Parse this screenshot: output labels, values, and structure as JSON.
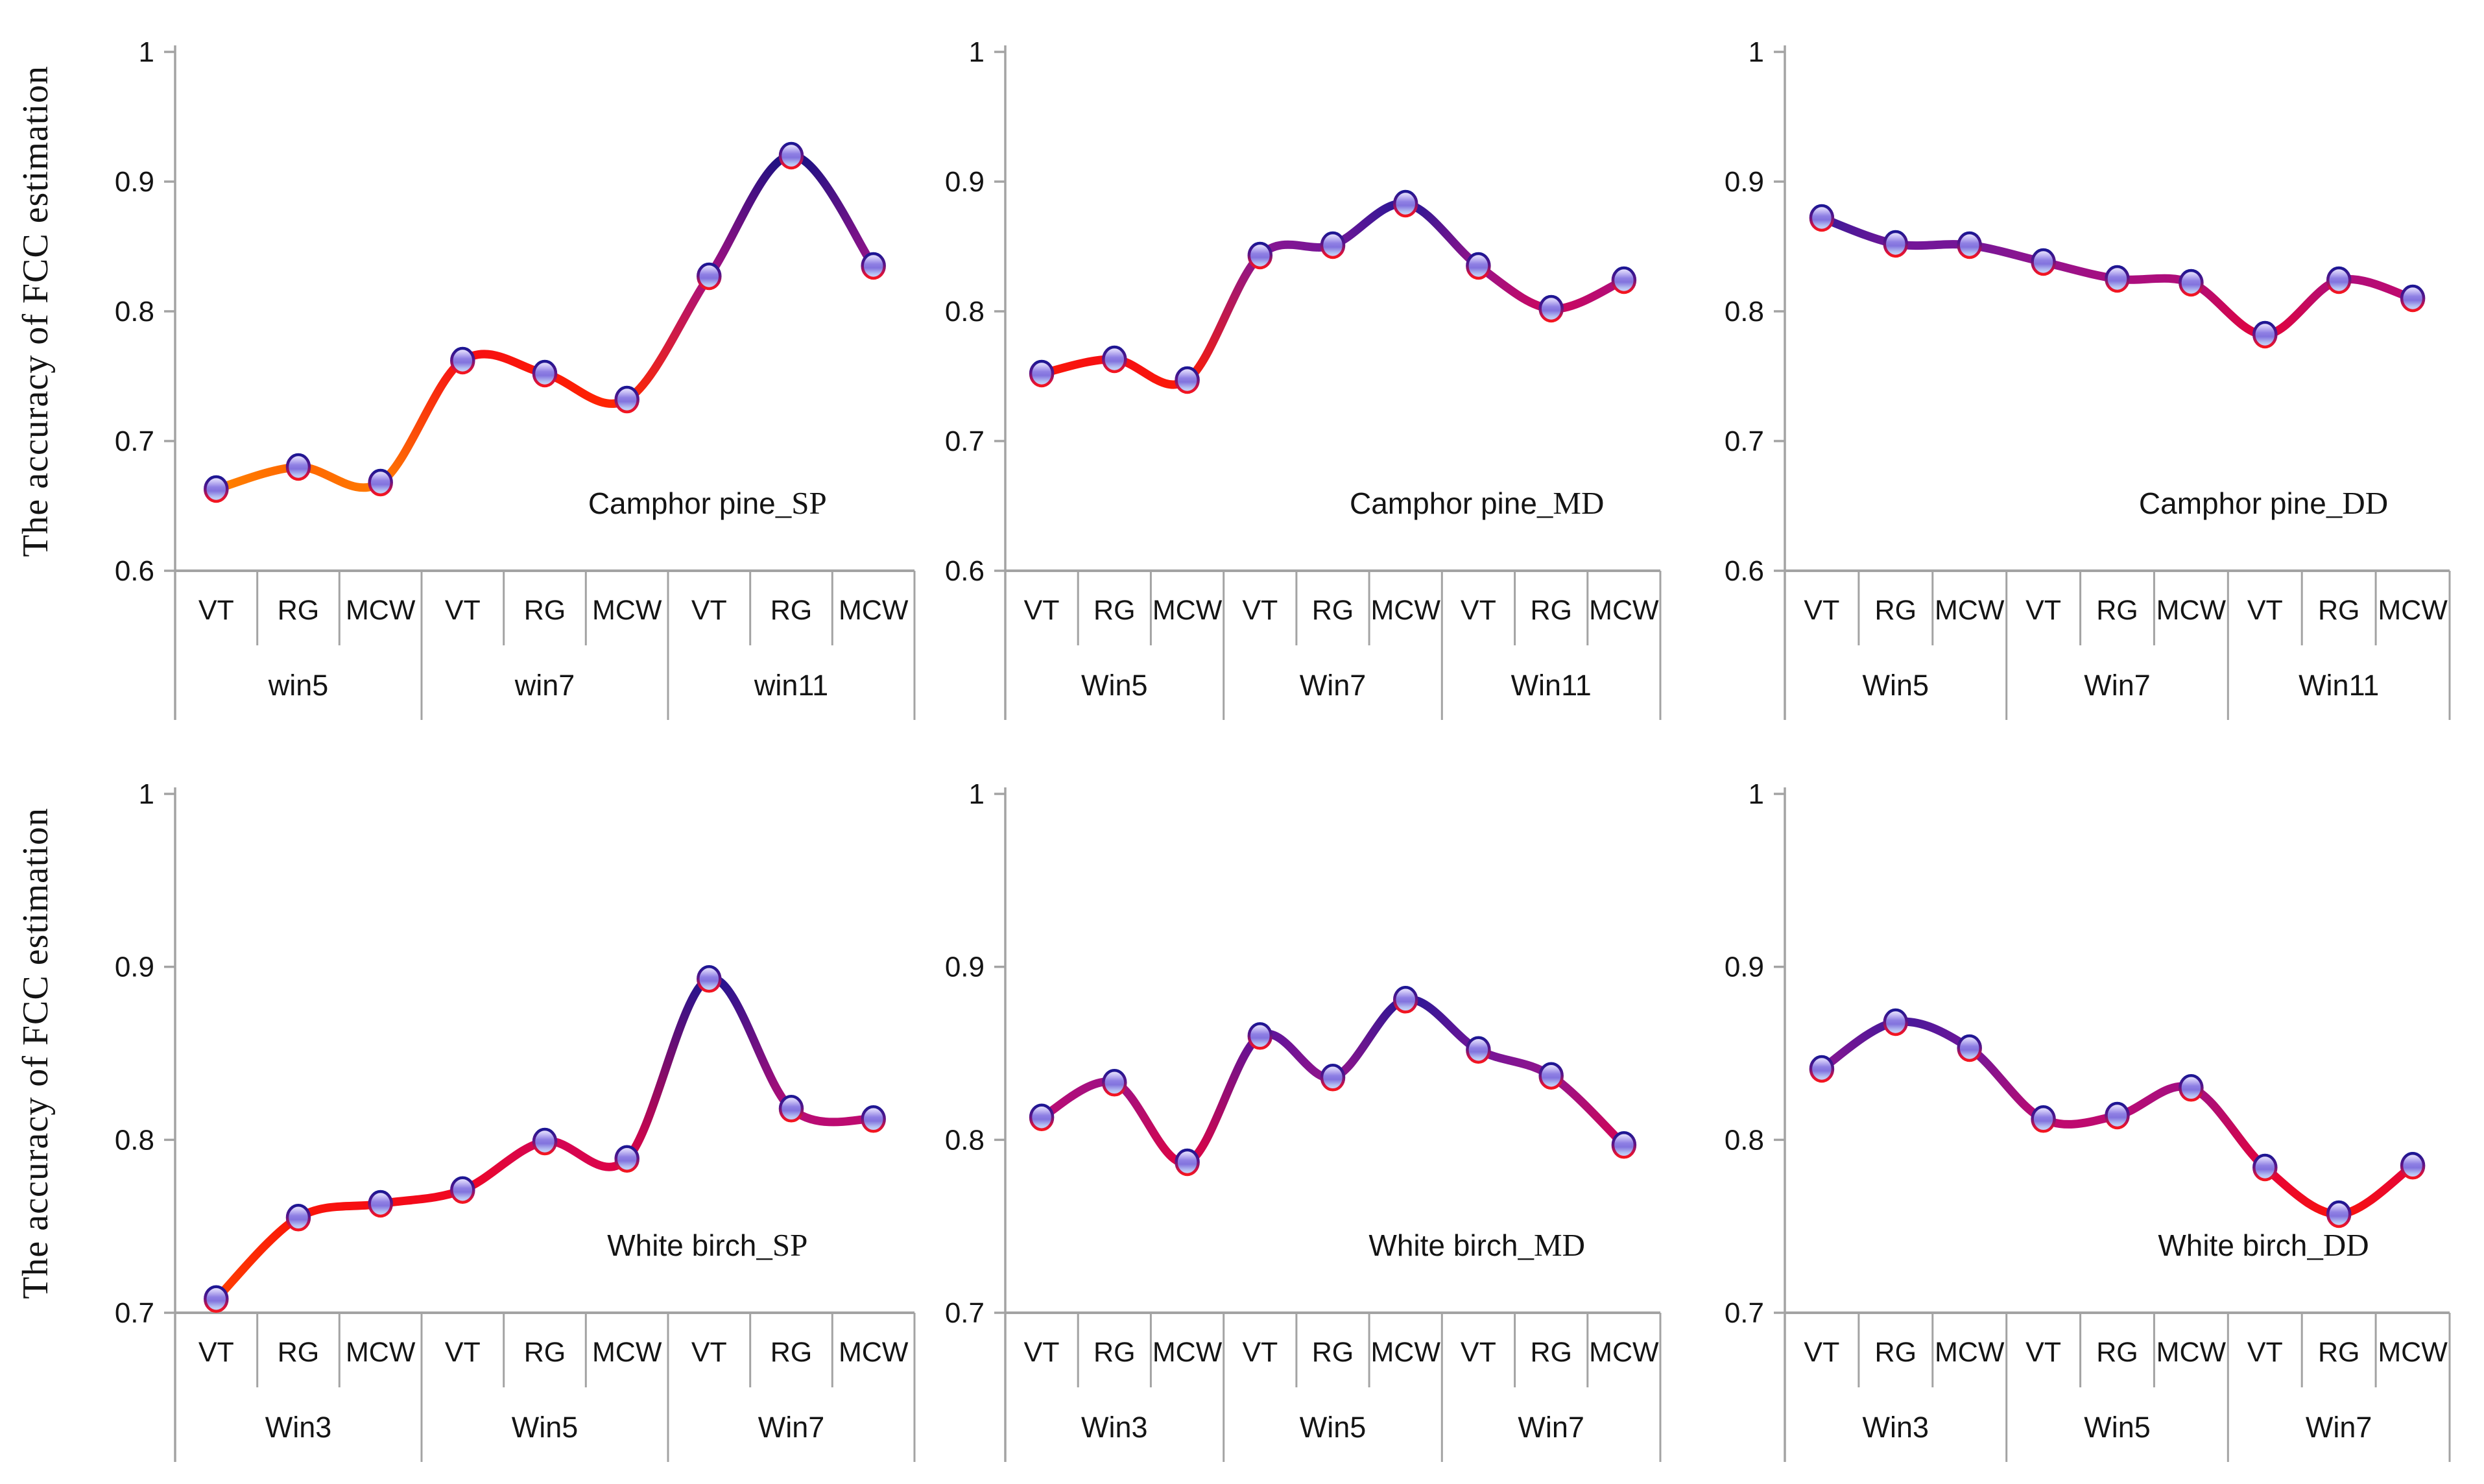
{
  "figure": {
    "ylabel": "The accuracy of FCC estimation"
  },
  "style": {
    "axis_color": "#a3a3a3",
    "text_color": "#141414",
    "line_width": 13,
    "line_color_stops": [
      [
        0.655,
        "#ff9000"
      ],
      [
        0.695,
        "#ff4d00"
      ],
      [
        0.73,
        "#ff2a00"
      ],
      [
        0.755,
        "#fa1508"
      ],
      [
        0.775,
        "#ee0229"
      ],
      [
        0.795,
        "#d8034f"
      ],
      [
        0.81,
        "#c3096b"
      ],
      [
        0.825,
        "#aa0e7e"
      ],
      [
        0.84,
        "#8f158f"
      ],
      [
        0.852,
        "#731698"
      ],
      [
        0.862,
        "#54149d"
      ],
      [
        0.872,
        "#3a1a98"
      ],
      [
        0.882,
        "#271795"
      ],
      [
        0.895,
        "#1c1590"
      ],
      [
        0.925,
        "#141080"
      ]
    ],
    "marker_fill_stops": [
      "#f1eefe",
      "#ccc4f6",
      "#8f80e4",
      "#8273de",
      "#b4c0f2",
      "#d0dbf8"
    ],
    "marker_stroke_stops": [
      "#1c1694",
      "#5a1589",
      "#d51140",
      "#f4161f"
    ]
  },
  "chart_data": [
    {
      "type": "line",
      "panel": "top-left",
      "title": "Camphor pine_SP",
      "title_name": "Camphor pine",
      "title_suffix": "_SP",
      "ylabel": "The accuracy of FCC estimation",
      "ylim": [
        0.6,
        1
      ],
      "yticks": [
        0.6,
        0.7,
        0.8,
        0.9,
        1
      ],
      "ytick_labels": [
        "0.6",
        "0.7",
        "0.8",
        "0.9",
        "1"
      ],
      "grid": false,
      "legend": false,
      "groups": [
        {
          "label": "win5",
          "categories": [
            "VT",
            "RG",
            "MCW"
          ],
          "values": [
            0.663,
            0.68,
            0.668
          ]
        },
        {
          "label": "win7",
          "categories": [
            "VT",
            "RG",
            "MCW"
          ],
          "values": [
            0.762,
            0.752,
            0.732
          ]
        },
        {
          "label": "win11",
          "categories": [
            "VT",
            "RG",
            "MCW"
          ],
          "values": [
            0.827,
            0.92,
            0.835
          ]
        }
      ]
    },
    {
      "type": "line",
      "panel": "top-middle",
      "title": "Camphor pine_MD",
      "title_name": "Camphor pine",
      "title_suffix": "_MD",
      "ylim": [
        0.6,
        1
      ],
      "yticks": [
        0.6,
        0.7,
        0.8,
        0.9,
        1
      ],
      "ytick_labels": [
        "0.6",
        "0.7",
        "0.8",
        "0.9",
        "1"
      ],
      "grid": false,
      "legend": false,
      "groups": [
        {
          "label": "Win5",
          "categories": [
            "VT",
            "RG",
            "MCW"
          ],
          "values": [
            0.752,
            0.763,
            0.747
          ]
        },
        {
          "label": "Win7",
          "categories": [
            "VT",
            "RG",
            "MCW"
          ],
          "values": [
            0.843,
            0.851,
            0.883
          ]
        },
        {
          "label": "Win11",
          "categories": [
            "VT",
            "RG",
            "MCW"
          ],
          "values": [
            0.835,
            0.802,
            0.824
          ]
        }
      ]
    },
    {
      "type": "line",
      "panel": "top-right",
      "title": "Camphor pine_DD",
      "title_name": "Camphor pine",
      "title_suffix": "_DD",
      "ylim": [
        0.6,
        1
      ],
      "yticks": [
        0.6,
        0.7,
        0.8,
        0.9,
        1
      ],
      "ytick_labels": [
        "0.6",
        "0.7",
        "0.8",
        "0.9",
        "1"
      ],
      "grid": false,
      "legend": false,
      "groups": [
        {
          "label": "Win5",
          "categories": [
            "VT",
            "RG",
            "MCW"
          ],
          "values": [
            0.872,
            0.852,
            0.851
          ]
        },
        {
          "label": "Win7",
          "categories": [
            "VT",
            "RG",
            "MCW"
          ],
          "values": [
            0.838,
            0.825,
            0.822
          ]
        },
        {
          "label": "Win11",
          "categories": [
            "VT",
            "RG",
            "MCW"
          ],
          "values": [
            0.782,
            0.824,
            0.81
          ]
        }
      ]
    },
    {
      "type": "line",
      "panel": "bottom-left",
      "title": "White birch_SP",
      "title_name": "White birch",
      "title_suffix": "_SP",
      "ylabel": "The accuracy of FCC estimation",
      "ylim": [
        0.7,
        1
      ],
      "yticks": [
        0.7,
        0.8,
        0.9,
        1
      ],
      "ytick_labels": [
        "0.7",
        "0.8",
        "0.9",
        "1"
      ],
      "grid": false,
      "legend": false,
      "groups": [
        {
          "label": "Win3",
          "categories": [
            "VT",
            "RG",
            "MCW"
          ],
          "values": [
            0.708,
            0.755,
            0.763
          ]
        },
        {
          "label": "Win5",
          "categories": [
            "VT",
            "RG",
            "MCW"
          ],
          "values": [
            0.771,
            0.799,
            0.789
          ]
        },
        {
          "label": "Win7",
          "categories": [
            "VT",
            "RG",
            "MCW"
          ],
          "values": [
            0.893,
            0.818,
            0.812
          ]
        }
      ]
    },
    {
      "type": "line",
      "panel": "bottom-middle",
      "title": "White birch_MD",
      "title_name": "White birch",
      "title_suffix": "_MD",
      "ylim": [
        0.7,
        1
      ],
      "yticks": [
        0.7,
        0.8,
        0.9,
        1
      ],
      "ytick_labels": [
        "0.7",
        "0.8",
        "0.9",
        "1"
      ],
      "grid": false,
      "legend": false,
      "groups": [
        {
          "label": "Win3",
          "categories": [
            "VT",
            "RG",
            "MCW"
          ],
          "values": [
            0.813,
            0.833,
            0.787
          ]
        },
        {
          "label": "Win5",
          "categories": [
            "VT",
            "RG",
            "MCW"
          ],
          "values": [
            0.86,
            0.836,
            0.881
          ]
        },
        {
          "label": "Win7",
          "categories": [
            "VT",
            "RG",
            "MCW"
          ],
          "values": [
            0.852,
            0.837,
            0.797
          ]
        }
      ]
    },
    {
      "type": "line",
      "panel": "bottom-right",
      "title": "White birch_DD",
      "title_name": "White birch",
      "title_suffix": "_DD",
      "ylim": [
        0.7,
        1
      ],
      "yticks": [
        0.7,
        0.8,
        0.9,
        1
      ],
      "ytick_labels": [
        "0.7",
        "0.8",
        "0.9",
        "1"
      ],
      "grid": false,
      "legend": false,
      "groups": [
        {
          "label": "Win3",
          "categories": [
            "VT",
            "RG",
            "MCW"
          ],
          "values": [
            0.841,
            0.868,
            0.853
          ]
        },
        {
          "label": "Win5",
          "categories": [
            "VT",
            "RG",
            "MCW"
          ],
          "values": [
            0.812,
            0.814,
            0.83
          ]
        },
        {
          "label": "Win7",
          "categories": [
            "VT",
            "RG",
            "MCW"
          ],
          "values": [
            0.784,
            0.757,
            0.785
          ]
        }
      ]
    }
  ]
}
